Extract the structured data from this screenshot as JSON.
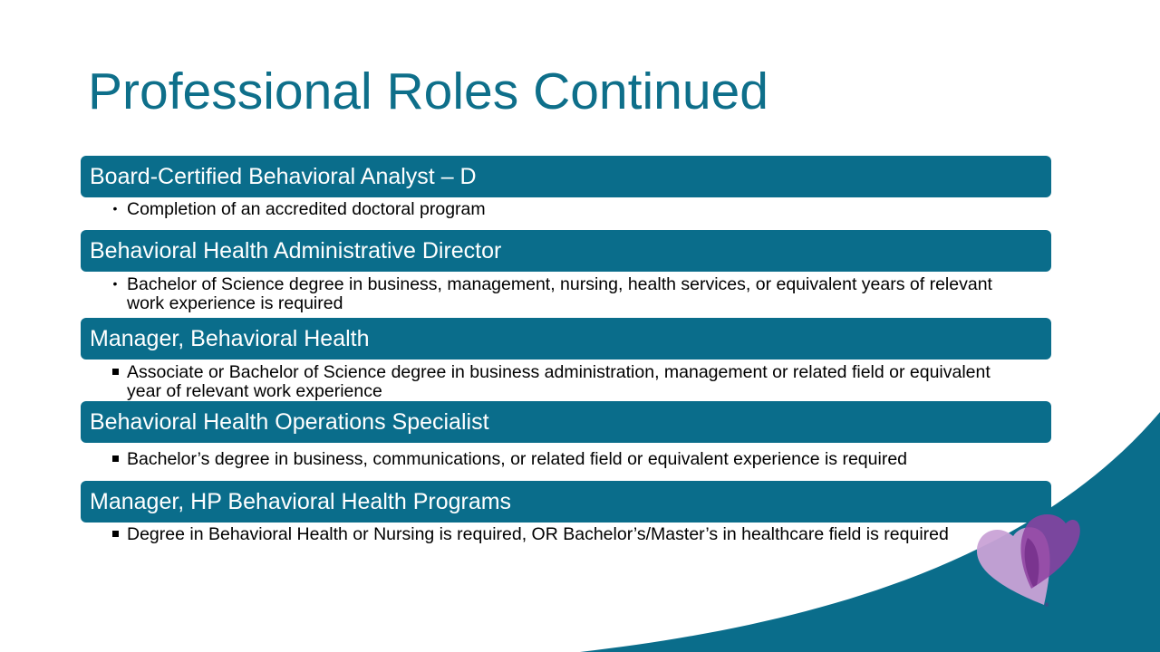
{
  "slide": {
    "title": "Professional Roles Continued",
    "accent_color": "#0a6d8b",
    "title_color": "#0e6f8a",
    "sections": [
      {
        "heading": "Board-Certified Behavioral Analyst – D",
        "bullet_style": "dot",
        "bullets": [
          "Completion of an accredited doctoral program"
        ]
      },
      {
        "heading": "Behavioral Health Administrative Director",
        "bullet_style": "dot",
        "bullets": [
          "Bachelor of Science degree in business, management, nursing, health services, or equivalent years of relevant work experience is required"
        ]
      },
      {
        "heading": "Manager, Behavioral Health",
        "bullet_style": "square",
        "bullets": [
          "Associate or Bachelor of Science degree in business administration, management or related field or equivalent year of relevant work experience"
        ]
      },
      {
        "heading": "Behavioral Health Operations Specialist",
        "bullet_style": "square",
        "bullets": [
          "Bachelor’s degree in business, communications, or related field or equivalent experience is required"
        ]
      },
      {
        "heading": "Manager, HP Behavioral Health Programs",
        "bullet_style": "square",
        "bullets": [
          "Degree in Behavioral Health or Nursing is required, OR Bachelor’s/Master’s in healthcare field is required"
        ]
      }
    ],
    "logo_icon": "heart-logo-icon"
  }
}
